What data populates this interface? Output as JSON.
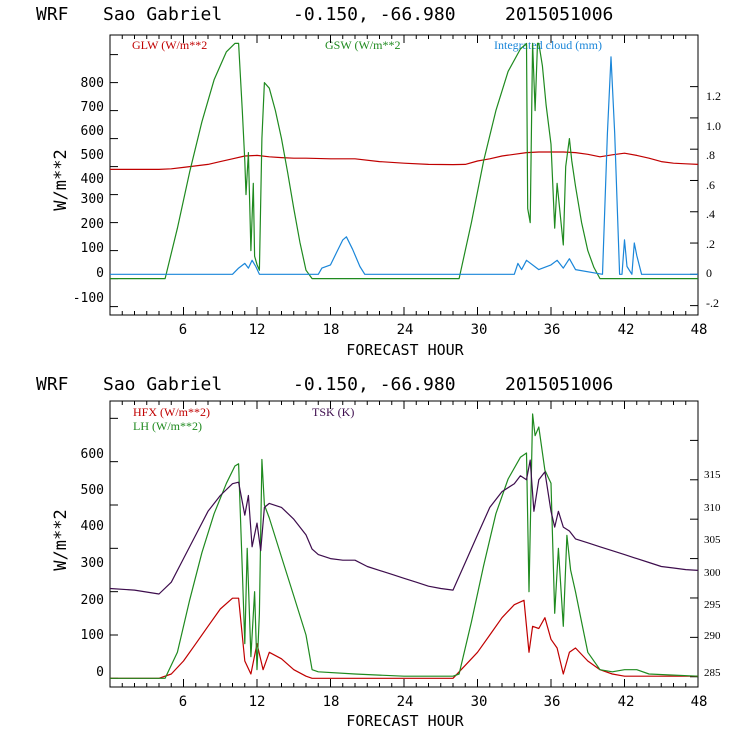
{
  "chart_data": [
    {
      "type": "line",
      "header": {
        "model": "WRF",
        "location": "Sao Gabriel",
        "coords": "-0.150, -66.980",
        "init": "2015051006"
      },
      "xlabel": "FORECAST HOUR",
      "ylabel": "W/m**2",
      "xlim": [
        0,
        48
      ],
      "ylim": [
        -130,
        870
      ],
      "y2lim": [
        -0.26,
        1.53
      ],
      "x_ticks": [
        "6",
        "12",
        "18",
        "24",
        "30",
        "36",
        "42",
        "48"
      ],
      "y_ticks": [
        "-100",
        "0",
        "100",
        "200",
        "300",
        "400",
        "500",
        "600",
        "700",
        "800"
      ],
      "y2_ticks": [
        "-.2",
        "0",
        ".2",
        ".4",
        ".6",
        ".8",
        "1.0",
        "1.2"
      ],
      "legend": [
        "GLW (W/m**2",
        "GSW (W/m**2",
        "Integrated cloud (mm)"
      ],
      "colors": {
        "glw": "#c00000",
        "gsw": "#1f8a1f",
        "cloud": "#1a86d9"
      },
      "series": [
        {
          "name": "GLW",
          "axis": "left",
          "x": [
            0,
            4,
            5,
            6,
            8,
            9,
            10,
            11,
            12,
            13,
            14,
            15,
            16,
            18,
            20,
            22,
            24,
            26,
            28,
            29,
            30,
            31,
            32,
            33,
            34,
            35,
            36,
            37,
            38,
            39,
            40,
            41,
            42,
            43,
            44,
            45,
            46,
            47,
            48
          ],
          "values": [
            390,
            390,
            392,
            397,
            408,
            418,
            428,
            438,
            440,
            435,
            432,
            430,
            430,
            428,
            428,
            418,
            412,
            408,
            407,
            408,
            420,
            428,
            438,
            444,
            450,
            452,
            452,
            452,
            450,
            444,
            435,
            442,
            448,
            440,
            430,
            418,
            412,
            410,
            408
          ]
        },
        {
          "name": "GSW",
          "axis": "left",
          "x": [
            0,
            4.5,
            5.5,
            6.5,
            7.5,
            8.5,
            9.5,
            10.2,
            10.5,
            10.8,
            11,
            11.1,
            11.3,
            11.5,
            11.7,
            11.8,
            12,
            12.2,
            12.4,
            12.6,
            13,
            13.5,
            14,
            14.5,
            15,
            15.5,
            16,
            16.5,
            17,
            28.5,
            29.5,
            30.5,
            31.5,
            32.5,
            33.5,
            34,
            34.1,
            34.3,
            34.5,
            34.7,
            34.9,
            35,
            35.3,
            35.6,
            36,
            36.3,
            36.5,
            37,
            37.2,
            37.5,
            37.7,
            38,
            38.5,
            39,
            39.5,
            40,
            40.5,
            48
          ],
          "values": [
            0,
            0,
            180,
            380,
            560,
            710,
            810,
            840,
            840,
            600,
            420,
            300,
            450,
            100,
            340,
            80,
            50,
            30,
            500,
            700,
            680,
            600,
            500,
            380,
            250,
            130,
            30,
            0,
            0,
            0,
            200,
            420,
            600,
            740,
            820,
            840,
            250,
            200,
            840,
            600,
            840,
            840,
            760,
            620,
            480,
            180,
            340,
            120,
            400,
            500,
            420,
            330,
            200,
            100,
            40,
            0,
            0,
            0
          ]
        },
        {
          "name": "Integrated cloud",
          "axis": "right",
          "x": [
            0,
            10,
            10.5,
            11,
            11.3,
            11.6,
            11.9,
            12.2,
            12.5,
            17,
            17.3,
            18,
            18.5,
            19,
            19.3,
            19.8,
            20.4,
            20.8,
            33,
            33.3,
            33.6,
            34,
            35,
            36,
            36.5,
            37,
            37.5,
            38,
            40.2,
            40.6,
            40.9,
            41.2,
            41.6,
            41.8,
            42,
            42.2,
            42.6,
            42.8,
            43,
            43.4,
            48
          ],
          "values": [
            0,
            0,
            0.04,
            0.07,
            0.04,
            0.09,
            0.05,
            0,
            0,
            0,
            0.04,
            0.06,
            0.14,
            0.22,
            0.24,
            0.16,
            0.05,
            0,
            0,
            0.07,
            0.03,
            0.09,
            0.03,
            0.06,
            0.09,
            0.04,
            0.1,
            0.03,
            0,
            0.9,
            1.39,
            0.9,
            0,
            0,
            0.22,
            0.05,
            0,
            0.2,
            0.12,
            0,
            0
          ]
        }
      ]
    },
    {
      "type": "line",
      "header": {
        "model": "WRF",
        "location": "Sao Gabriel",
        "coords": "-0.150, -66.980",
        "init": "2015051006"
      },
      "xlabel": "FORECAST HOUR",
      "ylabel": "W/m**2",
      "xlim": [
        0,
        48
      ],
      "ylim": [
        -20,
        640
      ],
      "y2lim": [
        283.7,
        320
      ],
      "x_ticks": [
        "6",
        "12",
        "18",
        "24",
        "30",
        "36",
        "42",
        "48"
      ],
      "y_ticks": [
        "0",
        "100",
        "200",
        "300",
        "400",
        "500",
        "600"
      ],
      "y2_ticks": [
        "285",
        "290",
        "295",
        "300",
        "305",
        "310",
        "315"
      ],
      "legend": [
        "HFX (W/m**2)",
        "LH  (W/m**2)",
        "TSK (K)"
      ],
      "colors": {
        "hfx": "#c00000",
        "lh": "#1f8a1f",
        "tsk": "#3d0d4d"
      },
      "series": [
        {
          "name": "HFX",
          "axis": "left",
          "x": [
            0,
            4,
            5,
            6,
            7,
            8,
            9,
            10,
            10.5,
            11,
            11.5,
            12,
            12.5,
            13,
            14,
            15,
            16,
            16.5,
            17,
            28,
            29,
            30,
            31,
            32,
            33,
            33.8,
            34.2,
            34.5,
            35,
            35.5,
            36,
            36.5,
            37,
            37.5,
            38,
            39,
            40,
            41,
            42,
            43,
            44,
            48
          ],
          "values": [
            0,
            0,
            10,
            40,
            80,
            120,
            160,
            185,
            185,
            40,
            10,
            80,
            20,
            60,
            45,
            20,
            5,
            0,
            0,
            0,
            30,
            60,
            100,
            140,
            170,
            180,
            60,
            120,
            115,
            140,
            90,
            70,
            10,
            60,
            70,
            40,
            20,
            10,
            5,
            5,
            5,
            5
          ]
        },
        {
          "name": "LH",
          "axis": "left",
          "x": [
            0,
            4.5,
            5.5,
            6.5,
            7.5,
            8.5,
            9.5,
            10.2,
            10.5,
            10.8,
            11,
            11.2,
            11.5,
            11.8,
            12,
            12.2,
            12.4,
            12.6,
            13,
            14,
            15,
            16,
            16.5,
            17,
            20,
            24,
            28,
            28.5,
            29.5,
            30.5,
            31.5,
            32.5,
            33.5,
            34,
            34.2,
            34.5,
            34.7,
            35,
            35.5,
            36,
            36.3,
            36.6,
            37,
            37.3,
            37.6,
            38,
            38.5,
            39,
            40,
            41,
            42,
            43,
            44,
            48
          ],
          "values": [
            0,
            0,
            60,
            180,
            290,
            380,
            450,
            490,
            495,
            250,
            80,
            300,
            50,
            200,
            20,
            150,
            505,
            400,
            370,
            280,
            190,
            100,
            20,
            15,
            10,
            5,
            5,
            10,
            130,
            260,
            380,
            460,
            510,
            520,
            200,
            610,
            560,
            580,
            480,
            450,
            150,
            300,
            120,
            330,
            250,
            200,
            130,
            60,
            20,
            15,
            20,
            20,
            10,
            5
          ]
        },
        {
          "name": "TSK",
          "axis": "right",
          "x": [
            0,
            2,
            4,
            5,
            6,
            7,
            8,
            9,
            10,
            10.5,
            11,
            11.3,
            11.6,
            12,
            12.3,
            12.6,
            13,
            14,
            15,
            16,
            16.5,
            17,
            18,
            19,
            20,
            21,
            22,
            23,
            24,
            25,
            26,
            27,
            28,
            29,
            30,
            31,
            32,
            33,
            33.5,
            34,
            34.3,
            34.6,
            35,
            35.5,
            36,
            36.3,
            36.6,
            37,
            37.5,
            38,
            39,
            40,
            41,
            42,
            43,
            44,
            45,
            46,
            47,
            48
          ],
          "values": [
            296.2,
            296.0,
            295.5,
            297.0,
            300.0,
            303.0,
            306.0,
            308.0,
            309.5,
            309.7,
            305.5,
            308.0,
            301.5,
            304.5,
            301.0,
            306.5,
            307.0,
            306.5,
            305.0,
            303.0,
            301.2,
            300.5,
            300.0,
            299.8,
            299.8,
            299.0,
            298.5,
            298.0,
            297.5,
            297.0,
            296.5,
            296.2,
            296.0,
            299.5,
            303.0,
            306.5,
            308.5,
            309.5,
            310.5,
            310.0,
            312.5,
            306.0,
            310.0,
            311.0,
            306.0,
            304.0,
            306.0,
            304.0,
            303.5,
            302.5,
            302.0,
            301.5,
            301.0,
            300.5,
            300.0,
            299.5,
            299.0,
            298.8,
            298.6,
            298.5
          ]
        }
      ]
    }
  ]
}
